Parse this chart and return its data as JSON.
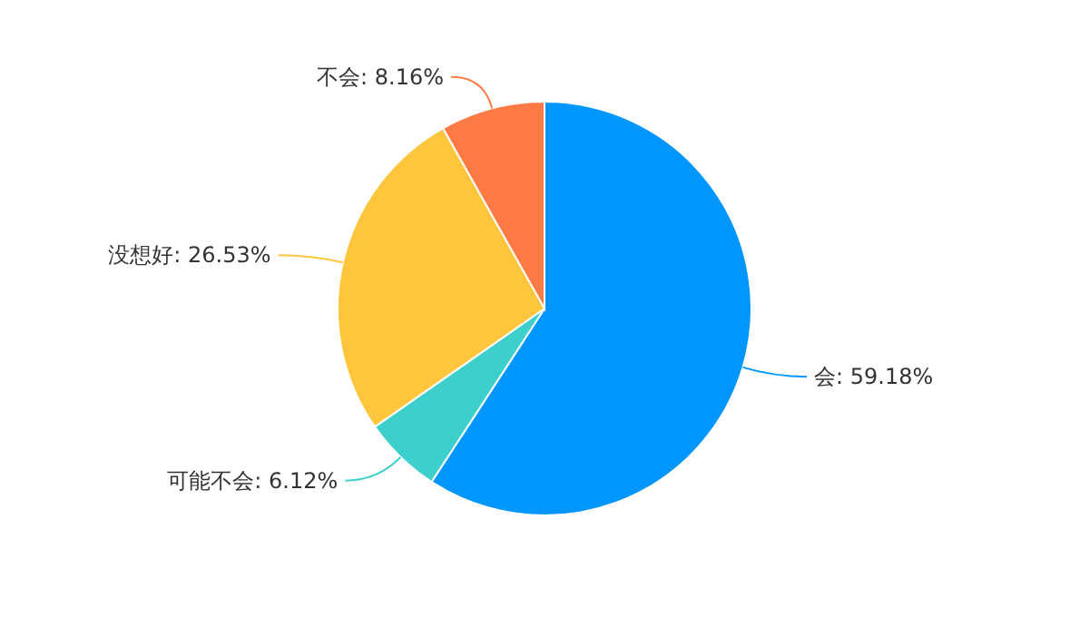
{
  "chart_data": {
    "type": "pie",
    "categories": [
      "会",
      "可能不会",
      "没想好",
      "不会"
    ],
    "values": [
      59.18,
      6.12,
      26.53,
      8.16
    ],
    "colors": [
      "#0096ff",
      "#3ccfcb",
      "#ffc53d",
      "#ff7a45"
    ],
    "value_labels": [
      "59.18%",
      "6.12%",
      "26.53%",
      "8.16%"
    ]
  }
}
